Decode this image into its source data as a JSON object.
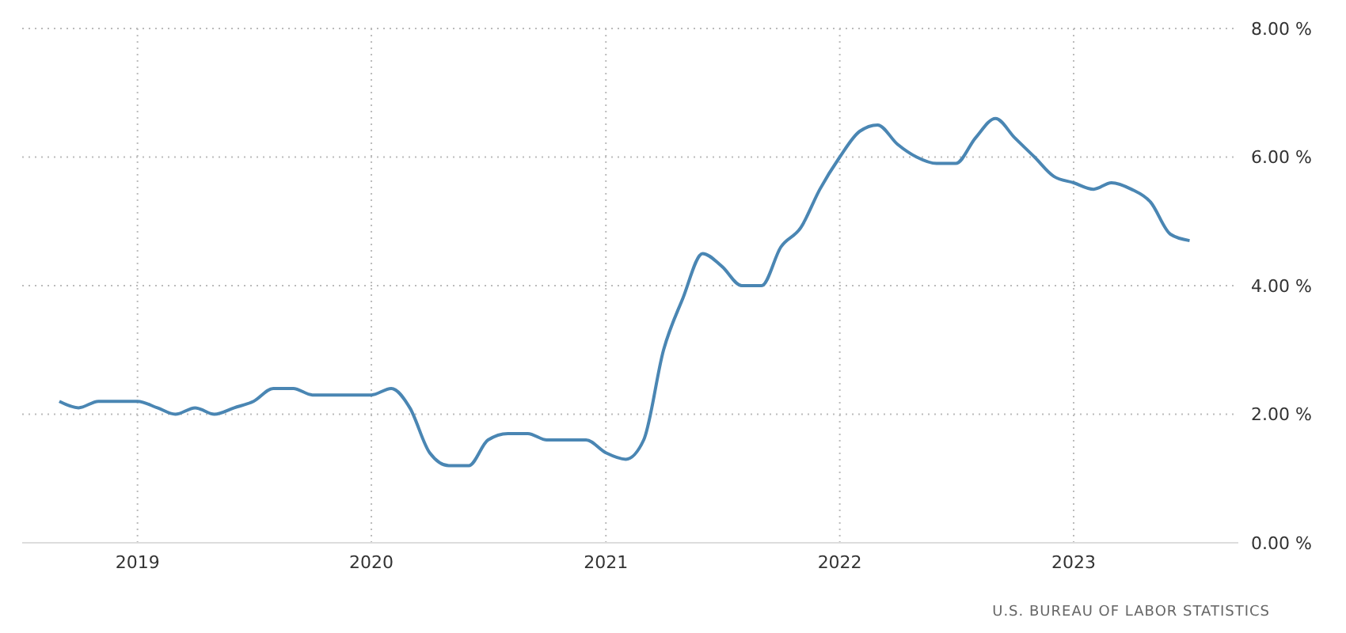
{
  "chart_data": {
    "type": "line",
    "x": [
      "2018-09",
      "2018-10",
      "2018-11",
      "2018-12",
      "2019-01",
      "2019-02",
      "2019-03",
      "2019-04",
      "2019-05",
      "2019-06",
      "2019-07",
      "2019-08",
      "2019-09",
      "2019-10",
      "2019-11",
      "2019-12",
      "2020-01",
      "2020-02",
      "2020-03",
      "2020-04",
      "2020-05",
      "2020-06",
      "2020-07",
      "2020-08",
      "2020-09",
      "2020-10",
      "2020-11",
      "2020-12",
      "2021-01",
      "2021-02",
      "2021-03",
      "2021-04",
      "2021-05",
      "2021-06",
      "2021-07",
      "2021-08",
      "2021-09",
      "2021-10",
      "2021-11",
      "2021-12",
      "2022-01",
      "2022-02",
      "2022-03",
      "2022-04",
      "2022-05",
      "2022-06",
      "2022-07",
      "2022-08",
      "2022-09",
      "2022-10",
      "2022-11",
      "2022-12",
      "2023-01",
      "2023-02",
      "2023-03",
      "2023-04",
      "2023-05",
      "2023-06",
      "2023-07"
    ],
    "series": [
      {
        "color": "#4a86b3",
        "values": [
          2.2,
          2.1,
          2.2,
          2.2,
          2.2,
          2.1,
          2.0,
          2.1,
          2.0,
          2.1,
          2.2,
          2.4,
          2.4,
          2.3,
          2.3,
          2.3,
          2.3,
          2.4,
          2.1,
          1.4,
          1.2,
          1.2,
          1.6,
          1.7,
          1.7,
          1.6,
          1.6,
          1.6,
          1.4,
          1.3,
          1.6,
          3.0,
          3.8,
          4.5,
          4.3,
          4.0,
          4.0,
          4.6,
          4.9,
          5.5,
          6.0,
          6.4,
          6.5,
          6.2,
          6.0,
          5.9,
          5.9,
          6.3,
          6.6,
          6.3,
          6.0,
          5.7,
          5.6,
          5.5,
          5.6,
          5.5,
          5.3,
          4.8,
          4.7
        ]
      }
    ],
    "xlim": [
      "2018-07-05",
      "2023-09-15"
    ],
    "xticks": [
      {
        "value": "2019-01-01",
        "label": "2019"
      },
      {
        "value": "2020-01-01",
        "label": "2020"
      },
      {
        "value": "2021-01-01",
        "label": "2021"
      },
      {
        "value": "2022-01-01",
        "label": "2022"
      },
      {
        "value": "2023-01-01",
        "label": "2023"
      }
    ],
    "ylim": [
      0,
      8
    ],
    "yticks": [
      {
        "value": 0,
        "label": "0.00 %"
      },
      {
        "value": 2,
        "label": "2.00 %"
      },
      {
        "value": 4,
        "label": "4.00 %"
      },
      {
        "value": 6,
        "label": "6.00 %"
      },
      {
        "value": 8,
        "label": "8.00 %"
      }
    ],
    "grid": true,
    "legend": false,
    "marker": "none",
    "line_style": "solid",
    "annotations": [
      "U.S. BUREAU OF LABOR STATISTICS"
    ]
  }
}
